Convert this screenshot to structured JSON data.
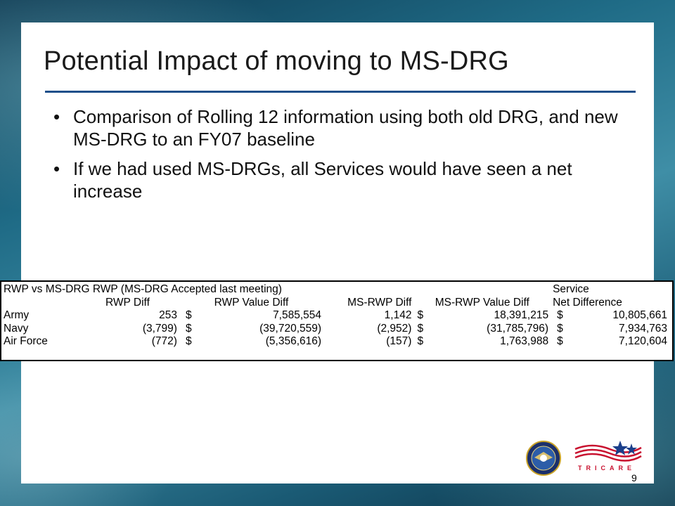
{
  "slide": {
    "title": "Potential Impact of moving to MS-DRG",
    "bullets": [
      "Comparison of Rolling 12 information using both old DRG, and new MS-DRG to an FY07 baseline",
      "If we had used MS-DRGs, all Services would have seen a net increase"
    ],
    "page_number": "9"
  },
  "table": {
    "header1": {
      "label": "RWP vs MS-DRG RWP  (MS-DRG Accepted last meeting)",
      "service": "Service"
    },
    "header2": {
      "rwp_diff": "RWP Diff",
      "rwp_value_diff": "RWP Value Diff",
      "ms_rwp_diff": "MS-RWP Diff",
      "ms_rwp_value_diff": "MS-RWP Value Diff",
      "net_difference": "Net Difference"
    },
    "currency_symbol": "$",
    "rows": [
      {
        "service": "Army",
        "rwp_diff": "253",
        "rwp_value_diff": "7,585,554",
        "ms_rwp_diff": "1,142",
        "ms_rwp_value_diff": "18,391,215",
        "net_difference": "10,805,661"
      },
      {
        "service": "Navy",
        "rwp_diff": "(3,799)",
        "rwp_value_diff": "(39,720,559)",
        "ms_rwp_diff": "(2,952)",
        "ms_rwp_value_diff": "(31,785,796)",
        "net_difference": "7,934,763"
      },
      {
        "service": "Air Force",
        "rwp_diff": "(772)",
        "rwp_value_diff": "(5,356,616)",
        "ms_rwp_diff": "(157)",
        "ms_rwp_value_diff": "1,763,988",
        "net_difference": "7,120,604"
      }
    ]
  },
  "logos": {
    "seal_icon": "department-of-defense-seal-icon",
    "tricare_icon": "tricare-logo-icon",
    "tricare_text": "TRICARE"
  },
  "colors": {
    "title_rule": "#1f4f8a",
    "tricare_red": "#c8102e",
    "tricare_blue": "#1b3f8b"
  }
}
